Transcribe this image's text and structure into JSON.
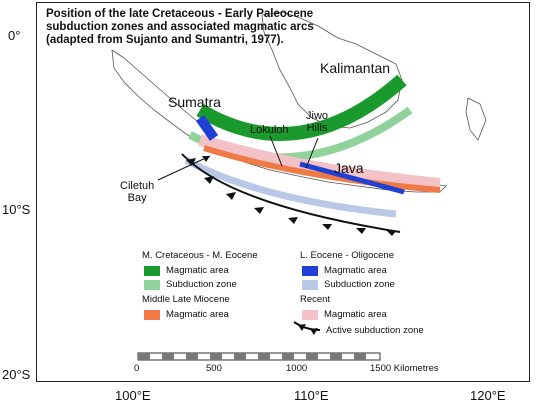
{
  "title_lines": [
    "Position of the late Cretaceous - Early Paleocene",
    "subduction zones and associated magmatic arcs",
    "(adapted from Sujanto and Sumantri, 1977)."
  ],
  "lat_labels": [
    "0°",
    "10°S",
    "20°S"
  ],
  "lon_labels": [
    "100°E",
    "110°E",
    "120°E"
  ],
  "places": {
    "kalimantan": "Kalimantan",
    "sumatra": "Sumatra",
    "java": "Java",
    "lokuloh": "Lokuloh",
    "jiwo_hills_1": "Jiwo",
    "jiwo_hills_2": "Hills",
    "ciletuh_1": "Ciletuh",
    "ciletuh_2": "Bay"
  },
  "legend": {
    "group1_title": "M. Cretaceous - M. Eocene",
    "group2_title": "L. Eocene - Oligocene",
    "group3_title": "Middle Late Miocene",
    "group4_title": "Recent",
    "magmatic_area": "Magmatic area",
    "subduction_zone": "Subduction zone",
    "active_subduction": "Active subduction zone"
  },
  "colors": {
    "cret_magmatic": "#1a9a2c",
    "cret_subduction": "#8fd39a",
    "eo_magmatic": "#1f3fd6",
    "eo_subduction": "#b9c8e6",
    "mio_magmatic": "#ef7a45",
    "recent_magmatic": "#f2c2c6"
  },
  "scale": {
    "ticks": [
      "0",
      "500",
      "1000",
      "1500 Kilometres"
    ]
  }
}
